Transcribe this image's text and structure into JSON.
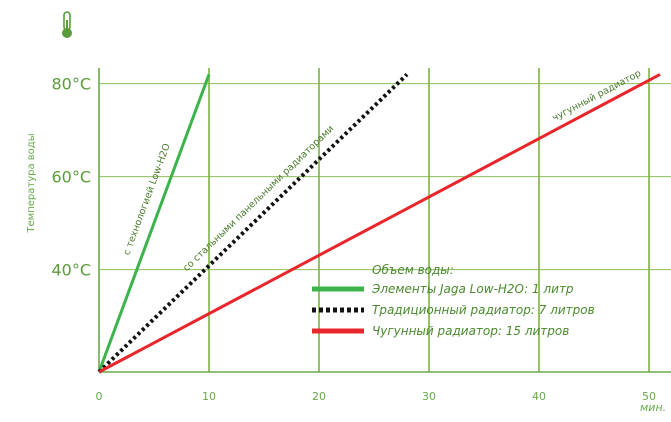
{
  "chart_data": {
    "type": "line",
    "xlabel": "",
    "ylabel": "Температура воды",
    "x_unit": "мин.",
    "xlim": [
      0,
      52
    ],
    "ylim": [
      18,
      83
    ],
    "x_ticks": [
      "0",
      "10",
      "20",
      "30",
      "40",
      "50"
    ],
    "y_ticks": [
      "40°C",
      "60°C",
      "80°C"
    ],
    "legend_title": "Объем воды:",
    "legend_placement": "center-right",
    "grid": true,
    "series": [
      {
        "name": "Элементы Jaga Low-H2O: 1 литр",
        "annotation": "с технологией Low-H2O",
        "color": "#3cb44b",
        "style": "solid",
        "x": [
          0,
          10
        ],
        "y": [
          18,
          82
        ]
      },
      {
        "name": "Традиционный радиатор: 7 литров",
        "annotation": "со стальными панельными радиаторами",
        "color": "#111111",
        "style": "dotted",
        "x": [
          0,
          28
        ],
        "y": [
          18,
          82
        ]
      },
      {
        "name": "Чугунный радиатор: 15 литров",
        "annotation": "чугунный радиатор",
        "color": "#e8262c",
        "style": "solid",
        "x": [
          0,
          51
        ],
        "y": [
          18,
          82
        ]
      }
    ]
  },
  "icons": {
    "thermometer": "thermometer-icon"
  },
  "colors": {
    "grid": "#7cb342",
    "axis": "#6aa84f"
  }
}
